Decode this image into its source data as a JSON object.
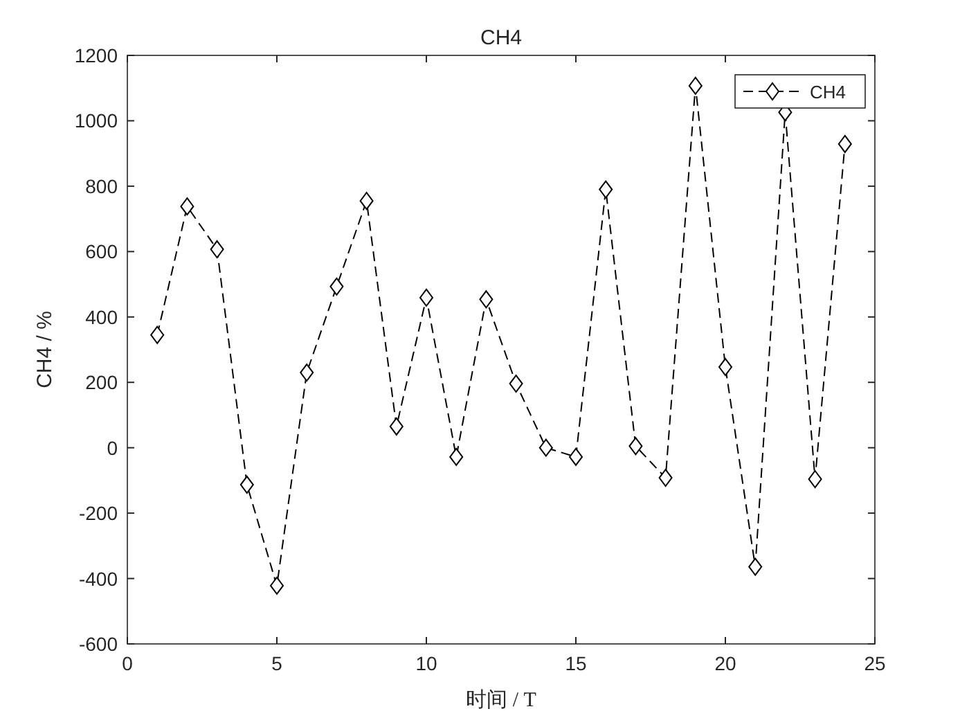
{
  "chart_data": {
    "type": "line",
    "title": "CH4",
    "xlabel": "时间 / T",
    "ylabel": "CH4 / %",
    "x": [
      1,
      2,
      3,
      4,
      5,
      6,
      7,
      8,
      9,
      10,
      11,
      12,
      13,
      14,
      15,
      16,
      17,
      18,
      19,
      20,
      21,
      22,
      23,
      24
    ],
    "series": [
      {
        "name": "CH4",
        "color": "#000000",
        "values": [
          345,
          738,
          607,
          -113,
          -422,
          230,
          493,
          755,
          65,
          459,
          -28,
          454,
          196,
          0,
          -28,
          790,
          5,
          -92,
          1107,
          247,
          -364,
          1026,
          -96,
          929
        ]
      }
    ],
    "xlim": [
      0,
      25
    ],
    "xticks": [
      0,
      5,
      10,
      15,
      20,
      25
    ],
    "ylim": [
      -600,
      1200
    ],
    "yticks": [
      -600,
      -400,
      -200,
      0,
      200,
      400,
      600,
      800,
      1000,
      1200
    ],
    "marker": "diamond",
    "line_style": "dashed",
    "legend": "top right",
    "grid": false
  }
}
